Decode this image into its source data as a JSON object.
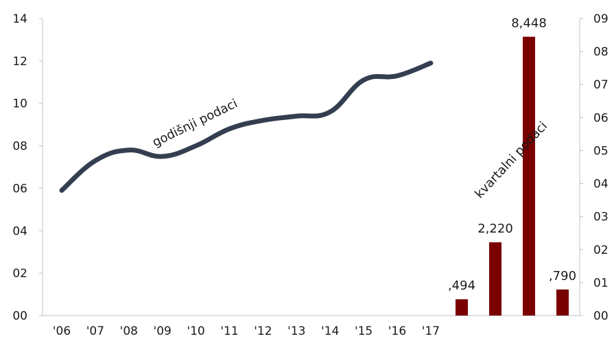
{
  "chart_data": {
    "type": "combo",
    "x_categories": [
      "'06",
      "'07",
      "'08",
      "'09",
      "'10",
      "'11",
      "'12",
      "'13",
      "'14",
      "'15",
      "'16",
      "'17"
    ],
    "left_axis": {
      "ticks": [
        "00",
        "02",
        "04",
        "06",
        "08",
        "10",
        "12",
        "14"
      ],
      "ylim": [
        0,
        14
      ]
    },
    "right_axis": {
      "ticks": [
        "00",
        "01",
        "02",
        "03",
        "04",
        "05",
        "06",
        "07",
        "08",
        "09"
      ],
      "ylim": [
        0,
        9
      ]
    },
    "line_series": {
      "annotation": "godišnji podaci",
      "color": "#333e50",
      "axis": "left",
      "values": [
        5.9,
        7.3,
        7.8,
        7.5,
        8.0,
        8.8,
        9.2,
        9.4,
        9.6,
        11.1,
        11.3,
        11.9
      ]
    },
    "bar_series": {
      "annotation": "kvartalni podaci",
      "color": "#7a0000",
      "axis": "right",
      "values": [
        0.494,
        2.22,
        8.448,
        0.79
      ],
      "labels": [
        ",494",
        "2,220",
        "8,448",
        ",790"
      ]
    },
    "grid": false
  }
}
